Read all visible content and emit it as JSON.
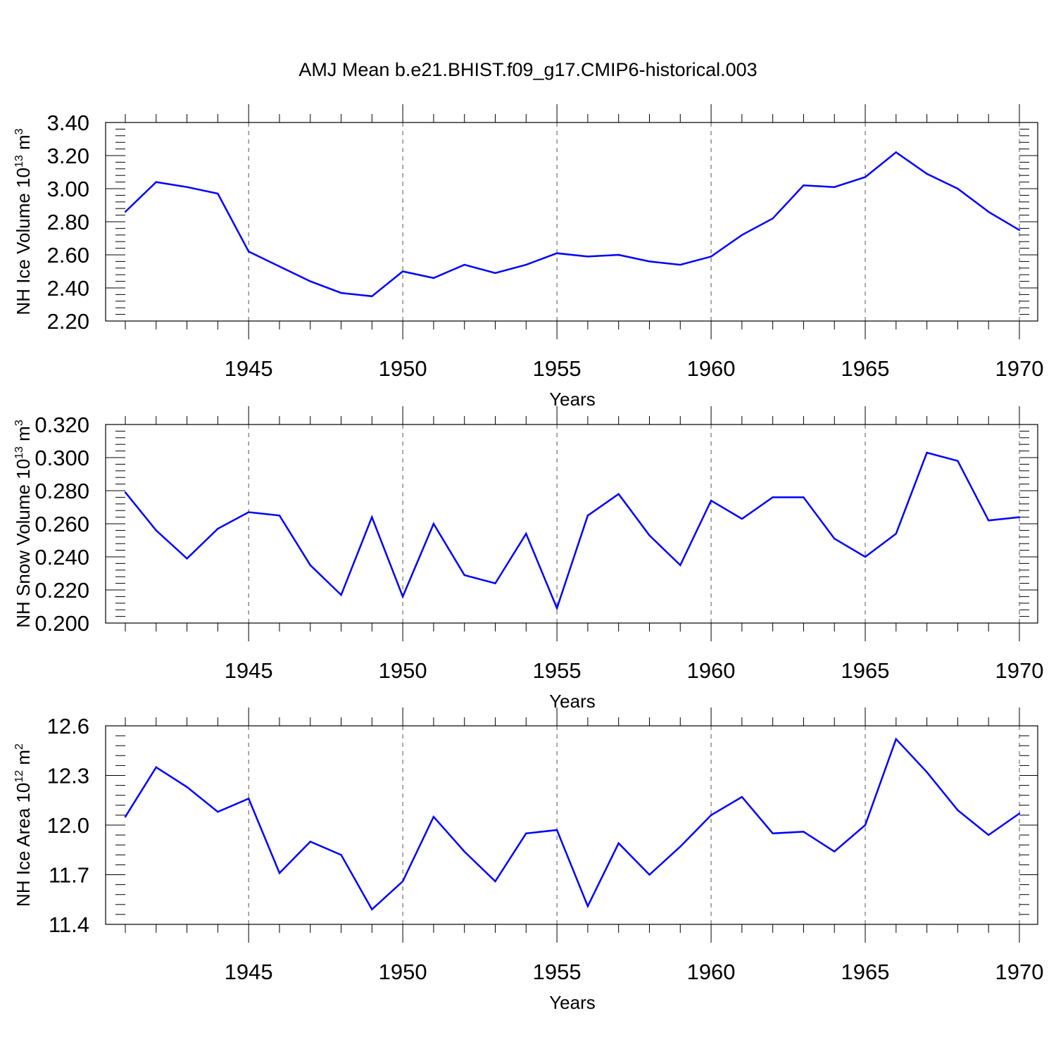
{
  "title": "AMJ Mean b.e21.BHIST.f09_g17.CMIP6-historical.003",
  "colors": {
    "series": "#0000ff",
    "axis": "#000000",
    "grid": "#555555"
  },
  "chart_data": [
    {
      "type": "line",
      "xlabel": "Years",
      "ylabel": {
        "main": "NH Ice Volume 10",
        "exp1": "13",
        "mid": " m",
        "exp2": "3"
      },
      "xlim": [
        1941,
        1970
      ],
      "ylim": [
        2.2,
        3.4
      ],
      "xticks": [
        "1945",
        "1950",
        "1955",
        "1960",
        "1965",
        "1970"
      ],
      "yticks": [
        "2.20",
        "2.40",
        "2.60",
        "2.80",
        "3.00",
        "3.20",
        "3.40"
      ],
      "grid": "vertical dashed at major x ticks",
      "x": [
        1941,
        1942,
        1943,
        1944,
        1945,
        1946,
        1947,
        1948,
        1949,
        1950,
        1951,
        1952,
        1953,
        1954,
        1955,
        1956,
        1957,
        1958,
        1959,
        1960,
        1961,
        1962,
        1963,
        1964,
        1965,
        1966,
        1967,
        1968,
        1969,
        1970
      ],
      "values": [
        2.86,
        3.04,
        3.01,
        2.97,
        2.62,
        2.53,
        2.44,
        2.37,
        2.35,
        2.5,
        2.46,
        2.54,
        2.49,
        2.54,
        2.61,
        2.59,
        2.6,
        2.56,
        2.54,
        2.59,
        2.72,
        2.82,
        3.02,
        3.01,
        3.07,
        3.22,
        3.09,
        3.0,
        2.86,
        2.75
      ]
    },
    {
      "type": "line",
      "xlabel": "Years",
      "ylabel": {
        "main": "NH Snow Volume 10",
        "exp1": "13",
        "mid": " m",
        "exp2": "3"
      },
      "xlim": [
        1941,
        1970
      ],
      "ylim": [
        0.2,
        0.32
      ],
      "xticks": [
        "1945",
        "1950",
        "1955",
        "1960",
        "1965",
        "1970"
      ],
      "yticks": [
        "0.200",
        "0.220",
        "0.240",
        "0.260",
        "0.280",
        "0.300",
        "0.320"
      ],
      "grid": "vertical dashed at major x ticks",
      "x": [
        1941,
        1942,
        1943,
        1944,
        1945,
        1946,
        1947,
        1948,
        1949,
        1950,
        1951,
        1952,
        1953,
        1954,
        1955,
        1956,
        1957,
        1958,
        1959,
        1960,
        1961,
        1962,
        1963,
        1964,
        1965,
        1966,
        1967,
        1968,
        1969,
        1970
      ],
      "values": [
        0.279,
        0.256,
        0.239,
        0.257,
        0.267,
        0.265,
        0.235,
        0.217,
        0.264,
        0.216,
        0.26,
        0.229,
        0.224,
        0.254,
        0.209,
        0.265,
        0.278,
        0.253,
        0.235,
        0.274,
        0.263,
        0.276,
        0.276,
        0.251,
        0.24,
        0.254,
        0.303,
        0.298,
        0.262,
        0.264
      ]
    },
    {
      "type": "line",
      "xlabel": "Years",
      "ylabel": {
        "main": "NH Ice Area 10",
        "exp1": "12",
        "mid": " m",
        "exp2": "2"
      },
      "xlim": [
        1941,
        1970
      ],
      "ylim": [
        11.4,
        12.6
      ],
      "xticks": [
        "1945",
        "1950",
        "1955",
        "1960",
        "1965",
        "1970"
      ],
      "yticks": [
        "11.4",
        "11.7",
        "12.0",
        "12.3",
        "12.6"
      ],
      "grid": "vertical dashed at major x ticks",
      "x": [
        1941,
        1942,
        1943,
        1944,
        1945,
        1946,
        1947,
        1948,
        1949,
        1950,
        1951,
        1952,
        1953,
        1954,
        1955,
        1956,
        1957,
        1958,
        1959,
        1960,
        1961,
        1962,
        1963,
        1964,
        1965,
        1966,
        1967,
        1968,
        1969,
        1970
      ],
      "values": [
        12.05,
        12.35,
        12.23,
        12.08,
        12.16,
        11.71,
        11.9,
        11.82,
        11.49,
        11.66,
        12.05,
        11.84,
        11.66,
        11.95,
        11.97,
        11.51,
        11.89,
        11.7,
        11.87,
        12.06,
        12.17,
        11.95,
        11.96,
        11.84,
        12.0,
        12.52,
        12.32,
        12.09,
        11.94,
        12.07
      ]
    }
  ]
}
